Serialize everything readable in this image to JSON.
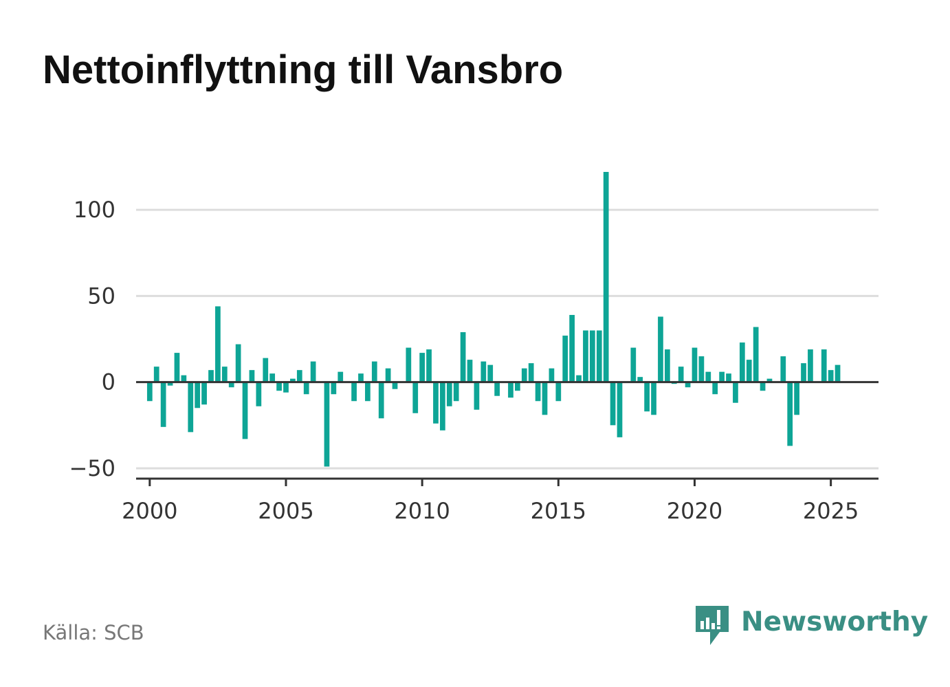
{
  "chart_data": {
    "type": "bar",
    "title": "Nettoinflyttning till Vansbro",
    "xlabel": "",
    "ylabel": "",
    "x_range": [
      1999.5,
      2026.75
    ],
    "ylim": [
      -56,
      122
    ],
    "x_ticks": [
      "2000",
      "2005",
      "2010",
      "2015",
      "2020",
      "2025"
    ],
    "y_ticks": [
      "100",
      "50",
      "0",
      "−50"
    ],
    "y_tick_values": [
      100,
      50,
      0,
      -50
    ],
    "grid": "horizontal",
    "legend": "none",
    "bar_color": "#0ea596",
    "series": [
      {
        "values": [
          -11,
          9,
          -26,
          -2,
          17,
          4,
          -29,
          -15,
          -13,
          7,
          44,
          9,
          -3,
          22,
          -33,
          7,
          -14,
          14,
          5,
          -5,
          -6,
          2,
          7,
          -7,
          12,
          0,
          -49,
          -7,
          6,
          0,
          -11,
          5,
          -11,
          12,
          -21,
          8,
          -4,
          0,
          20,
          -18,
          17,
          19,
          -24,
          -28,
          -14,
          -11,
          29,
          13,
          -16,
          12,
          10,
          -8,
          0,
          -9,
          -5,
          8,
          11,
          -11,
          -19,
          8,
          -11,
          27,
          39,
          4,
          30,
          30,
          30,
          122,
          -25,
          -32,
          0,
          20,
          3,
          -17,
          -19,
          38,
          19,
          -1,
          9,
          -3,
          20,
          15,
          6,
          -7,
          6,
          5,
          -12,
          23,
          13,
          32,
          -5,
          2,
          0,
          15,
          -37,
          -19,
          11,
          19,
          0,
          19,
          7,
          10
        ]
      }
    ]
  },
  "source_label": "Källa: SCB",
  "brand_name": "Newsworthy",
  "brand_color": "#3a8f84",
  "logo_icon": "newsworthy-bar-chart-speech-bubble-icon"
}
